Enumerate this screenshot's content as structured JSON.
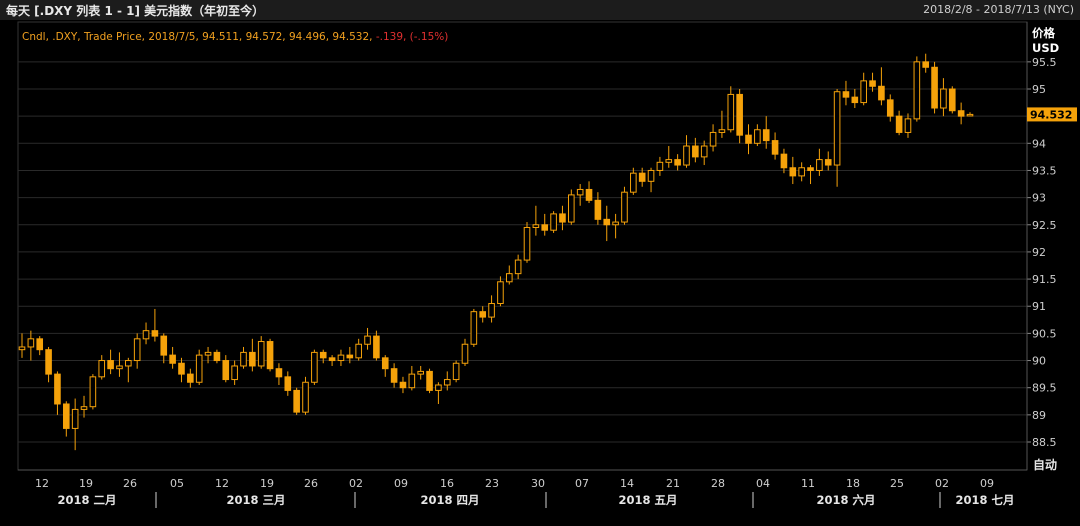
{
  "window": {
    "title": "每天 [.DXY 列表 1 - 1] 美元指数（年初至今）",
    "date_range": "2018/2/8 - 2018/7/13 (NYC)"
  },
  "legend": {
    "text": "Cndl, .DXY, Trade Price, 2018/7/5, 94.511, 94.572, 94.496, 94.532,",
    "change": "-.139, (-.15%)"
  },
  "axis": {
    "price_label": "价格",
    "currency": "USD",
    "auto_button": "自动",
    "last_price": "94.532"
  },
  "colors": {
    "candle": "#f5a20a",
    "background": "#000000",
    "grid": "#2a2a2a",
    "last_price_tag": "#f5a20a",
    "negative": "#e03030"
  },
  "chart_data": {
    "type": "candlestick",
    "title": "",
    "xlabel": "",
    "ylabel": "价格 USD",
    "ylim": [
      88.0,
      95.9
    ],
    "grid": true,
    "y_ticks": [
      "95.5",
      "95",
      "94.5",
      "94",
      "93.5",
      "93",
      "92.5",
      "92",
      "91.5",
      "91",
      "90.5",
      "90",
      "89.5",
      "89",
      "88.5"
    ],
    "x_day_ticks": [
      "12",
      "19",
      "26",
      "05",
      "12",
      "19",
      "26",
      "02",
      "09",
      "16",
      "23",
      "30",
      "07",
      "14",
      "21",
      "28",
      "04",
      "11",
      "18",
      "25",
      "02",
      "09"
    ],
    "x_month_ticks": [
      "2018 二月",
      "2018 三月",
      "2018 四月",
      "2018 五月",
      "2018 六月",
      "2018 七月"
    ],
    "candles": [
      [
        90.2,
        90.5,
        90.05,
        90.25
      ],
      [
        90.25,
        90.55,
        90.0,
        90.4
      ],
      [
        90.4,
        90.45,
        90.1,
        90.2
      ],
      [
        90.2,
        90.25,
        89.6,
        89.75
      ],
      [
        89.75,
        89.8,
        89.0,
        89.2
      ],
      [
        89.2,
        89.25,
        88.6,
        88.75
      ],
      [
        88.75,
        89.3,
        88.35,
        89.1
      ],
      [
        89.1,
        89.35,
        88.95,
        89.15
      ],
      [
        89.15,
        89.75,
        89.1,
        89.7
      ],
      [
        89.7,
        90.1,
        89.65,
        90.0
      ],
      [
        90.0,
        90.2,
        89.75,
        89.85
      ],
      [
        89.85,
        90.15,
        89.7,
        89.9
      ],
      [
        89.9,
        90.05,
        89.6,
        90.0
      ],
      [
        90.0,
        90.5,
        89.85,
        90.4
      ],
      [
        90.4,
        90.7,
        90.3,
        90.55
      ],
      [
        90.55,
        90.95,
        90.35,
        90.45
      ],
      [
        90.45,
        90.5,
        89.95,
        90.1
      ],
      [
        90.1,
        90.25,
        89.85,
        89.95
      ],
      [
        89.95,
        90.05,
        89.6,
        89.75
      ],
      [
        89.75,
        89.85,
        89.5,
        89.6
      ],
      [
        89.6,
        90.2,
        89.55,
        90.1
      ],
      [
        90.1,
        90.25,
        89.95,
        90.15
      ],
      [
        90.15,
        90.2,
        89.95,
        90.0
      ],
      [
        90.0,
        90.1,
        89.6,
        89.65
      ],
      [
        89.65,
        90.0,
        89.55,
        89.9
      ],
      [
        89.9,
        90.25,
        89.85,
        90.15
      ],
      [
        90.15,
        90.4,
        89.8,
        89.9
      ],
      [
        89.9,
        90.45,
        89.85,
        90.35
      ],
      [
        90.35,
        90.4,
        89.8,
        89.85
      ],
      [
        89.85,
        89.95,
        89.55,
        89.7
      ],
      [
        89.7,
        89.8,
        89.35,
        89.45
      ],
      [
        89.45,
        89.5,
        89.0,
        89.05
      ],
      [
        89.05,
        89.7,
        89.0,
        89.6
      ],
      [
        89.6,
        90.2,
        89.55,
        90.15
      ],
      [
        90.15,
        90.2,
        89.95,
        90.05
      ],
      [
        90.05,
        90.1,
        89.9,
        90.0
      ],
      [
        90.0,
        90.2,
        89.9,
        90.1
      ],
      [
        90.1,
        90.25,
        89.95,
        90.05
      ],
      [
        90.05,
        90.4,
        90.0,
        90.3
      ],
      [
        90.3,
        90.6,
        90.2,
        90.45
      ],
      [
        90.45,
        90.55,
        90.0,
        90.05
      ],
      [
        90.05,
        90.1,
        89.7,
        89.85
      ],
      [
        89.85,
        89.95,
        89.5,
        89.6
      ],
      [
        89.6,
        89.7,
        89.4,
        89.5
      ],
      [
        89.5,
        89.9,
        89.45,
        89.75
      ],
      [
        89.75,
        89.9,
        89.65,
        89.8
      ],
      [
        89.8,
        89.85,
        89.4,
        89.45
      ],
      [
        89.45,
        89.6,
        89.2,
        89.55
      ],
      [
        89.55,
        89.8,
        89.45,
        89.65
      ],
      [
        89.65,
        90.0,
        89.6,
        89.95
      ],
      [
        89.95,
        90.4,
        89.9,
        90.3
      ],
      [
        90.3,
        90.95,
        90.25,
        90.9
      ],
      [
        90.9,
        91.0,
        90.7,
        90.8
      ],
      [
        90.8,
        91.2,
        90.7,
        91.05
      ],
      [
        91.05,
        91.55,
        91.0,
        91.45
      ],
      [
        91.45,
        91.75,
        91.4,
        91.6
      ],
      [
        91.6,
        91.95,
        91.5,
        91.85
      ],
      [
        91.85,
        92.55,
        91.8,
        92.45
      ],
      [
        92.45,
        92.85,
        92.3,
        92.5
      ],
      [
        92.5,
        92.7,
        92.3,
        92.4
      ],
      [
        92.4,
        92.75,
        92.35,
        92.7
      ],
      [
        92.7,
        92.85,
        92.4,
        92.55
      ],
      [
        92.55,
        93.15,
        92.5,
        93.05
      ],
      [
        93.05,
        93.25,
        92.85,
        93.15
      ],
      [
        93.15,
        93.3,
        92.9,
        92.95
      ],
      [
        92.95,
        93.1,
        92.5,
        92.6
      ],
      [
        92.6,
        92.85,
        92.2,
        92.5
      ],
      [
        92.5,
        92.7,
        92.25,
        92.55
      ],
      [
        92.55,
        93.2,
        92.5,
        93.1
      ],
      [
        93.1,
        93.55,
        93.05,
        93.45
      ],
      [
        93.45,
        93.55,
        93.2,
        93.3
      ],
      [
        93.3,
        93.55,
        93.1,
        93.5
      ],
      [
        93.5,
        93.75,
        93.4,
        93.65
      ],
      [
        93.65,
        93.95,
        93.55,
        93.7
      ],
      [
        93.7,
        93.8,
        93.5,
        93.6
      ],
      [
        93.6,
        94.15,
        93.55,
        93.95
      ],
      [
        93.95,
        94.1,
        93.65,
        93.75
      ],
      [
        93.75,
        94.05,
        93.6,
        93.95
      ],
      [
        93.95,
        94.35,
        93.85,
        94.2
      ],
      [
        94.2,
        94.6,
        94.1,
        94.25
      ],
      [
        94.25,
        95.05,
        94.2,
        94.9
      ],
      [
        94.9,
        95.0,
        94.0,
        94.15
      ],
      [
        94.15,
        94.35,
        93.8,
        94.0
      ],
      [
        94.0,
        94.35,
        93.95,
        94.25
      ],
      [
        94.25,
        94.5,
        93.9,
        94.05
      ],
      [
        94.05,
        94.2,
        93.7,
        93.8
      ],
      [
        93.8,
        93.9,
        93.45,
        93.55
      ],
      [
        93.55,
        93.75,
        93.25,
        93.4
      ],
      [
        93.4,
        93.65,
        93.3,
        93.55
      ],
      [
        93.55,
        93.6,
        93.25,
        93.5
      ],
      [
        93.5,
        93.9,
        93.4,
        93.7
      ],
      [
        93.7,
        93.85,
        93.5,
        93.6
      ],
      [
        93.6,
        95.0,
        93.2,
        94.95
      ],
      [
        94.95,
        95.15,
        94.7,
        94.85
      ],
      [
        94.85,
        95.0,
        94.65,
        94.75
      ],
      [
        94.75,
        95.3,
        94.7,
        95.15
      ],
      [
        95.15,
        95.3,
        94.95,
        95.05
      ],
      [
        95.05,
        95.4,
        94.7,
        94.8
      ],
      [
        94.8,
        94.9,
        94.4,
        94.5
      ],
      [
        94.5,
        94.6,
        94.15,
        94.2
      ],
      [
        94.2,
        94.55,
        94.1,
        94.45
      ],
      [
        94.45,
        95.6,
        94.4,
        95.5
      ],
      [
        95.5,
        95.65,
        95.3,
        95.4
      ],
      [
        95.4,
        95.5,
        94.55,
        94.65
      ],
      [
        94.65,
        95.2,
        94.5,
        95.0
      ],
      [
        95.0,
        95.05,
        94.55,
        94.6
      ],
      [
        94.6,
        94.75,
        94.35,
        94.5
      ],
      [
        94.511,
        94.572,
        94.496,
        94.532
      ]
    ]
  }
}
